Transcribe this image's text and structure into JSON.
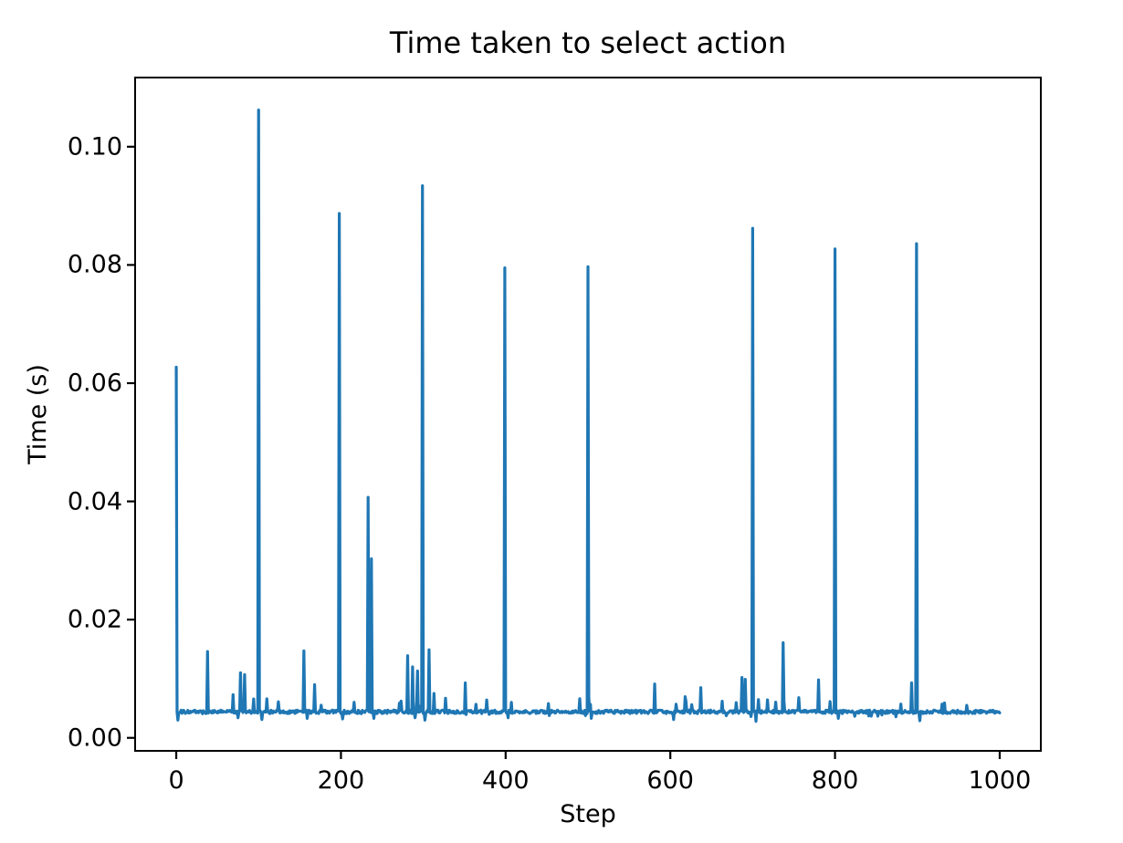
{
  "figure": {
    "background": "#ffffff"
  },
  "chart_data": {
    "type": "line",
    "title": "Time taken to select action",
    "xlabel": "Step",
    "ylabel": "Time (s)",
    "x_ticks": [
      0,
      200,
      400,
      600,
      800,
      1000
    ],
    "y_ticks": [
      0.0,
      0.02,
      0.04,
      0.06,
      0.08,
      0.1
    ],
    "y_tick_labels": [
      "0.00",
      "0.02",
      "0.04",
      "0.06",
      "0.08",
      "0.10"
    ],
    "xlim": [
      -49.95,
      1049.95
    ],
    "ylim": [
      -0.0022,
      0.1117
    ],
    "n_points": 1001,
    "baseline": 0.0044,
    "noise_amplitude": 0.0003,
    "line_color": "#1f77b4",
    "axis_color": "#000000",
    "grid": false,
    "legend": null,
    "spikes": [
      {
        "step": 0,
        "value": 0.0627
      },
      {
        "step": 38,
        "value": 0.0146
      },
      {
        "step": 69,
        "value": 0.0073
      },
      {
        "step": 78,
        "value": 0.011
      },
      {
        "step": 83,
        "value": 0.0107
      },
      {
        "step": 100,
        "value": 0.1062
      },
      {
        "step": 110,
        "value": 0.0066
      },
      {
        "step": 124,
        "value": 0.0061
      },
      {
        "step": 155,
        "value": 0.0147
      },
      {
        "step": 168,
        "value": 0.009
      },
      {
        "step": 198,
        "value": 0.0887
      },
      {
        "step": 233,
        "value": 0.0407
      },
      {
        "step": 237,
        "value": 0.0303
      },
      {
        "step": 281,
        "value": 0.0139
      },
      {
        "step": 287,
        "value": 0.012
      },
      {
        "step": 293,
        "value": 0.0113
      },
      {
        "step": 299,
        "value": 0.0934
      },
      {
        "step": 307,
        "value": 0.0149
      },
      {
        "step": 313,
        "value": 0.0075
      },
      {
        "step": 351,
        "value": 0.0093
      },
      {
        "step": 399,
        "value": 0.0795
      },
      {
        "step": 407,
        "value": 0.006
      },
      {
        "step": 452,
        "value": 0.0058
      },
      {
        "step": 500,
        "value": 0.0797
      },
      {
        "step": 581,
        "value": 0.0091
      },
      {
        "step": 607,
        "value": 0.0057
      },
      {
        "step": 637,
        "value": 0.0085
      },
      {
        "step": 663,
        "value": 0.0062
      },
      {
        "step": 687,
        "value": 0.0102
      },
      {
        "step": 691,
        "value": 0.0099
      },
      {
        "step": 700,
        "value": 0.0862
      },
      {
        "step": 737,
        "value": 0.0161
      },
      {
        "step": 780,
        "value": 0.0098
      },
      {
        "step": 800,
        "value": 0.0827
      },
      {
        "step": 893,
        "value": 0.0093
      },
      {
        "step": 899,
        "value": 0.0836
      },
      {
        "step": 960,
        "value": 0.0055
      }
    ],
    "dips": [
      {
        "step": 2,
        "value": 0.003
      },
      {
        "step": 75,
        "value": 0.0034
      },
      {
        "step": 104,
        "value": 0.0031
      },
      {
        "step": 159,
        "value": 0.0033
      },
      {
        "step": 202,
        "value": 0.0032
      },
      {
        "step": 240,
        "value": 0.0033
      },
      {
        "step": 290,
        "value": 0.0034
      },
      {
        "step": 302,
        "value": 0.003
      },
      {
        "step": 403,
        "value": 0.0034
      },
      {
        "step": 504,
        "value": 0.0033
      },
      {
        "step": 604,
        "value": 0.0031
      },
      {
        "step": 704,
        "value": 0.0028
      },
      {
        "step": 804,
        "value": 0.0033
      },
      {
        "step": 903,
        "value": 0.0029
      }
    ]
  }
}
